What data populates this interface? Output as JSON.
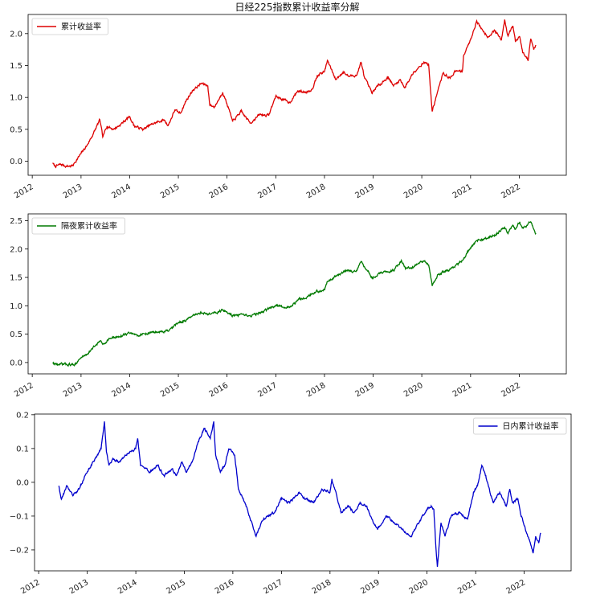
{
  "chart_data": [
    {
      "type": "line",
      "title": "日经225指数累计收益率分解",
      "legend_position": "top-left",
      "series": [
        {
          "name": "累计收益率",
          "color": "#dd0000"
        }
      ],
      "xlim": [
        "2011-12-01",
        "2022-12-20"
      ],
      "ylim": [
        -0.22,
        2.3
      ],
      "x_ticks": [
        "2012",
        "2013",
        "2014",
        "2015",
        "2016",
        "2017",
        "2018",
        "2019",
        "2020",
        "2021",
        "2022"
      ],
      "y_ticks": [
        "0.0",
        "0.5",
        "1.0",
        "1.5",
        "2.0"
      ],
      "y_tick_values": [
        0,
        0.5,
        1.0,
        1.5,
        2.0
      ],
      "points": [
        [
          "2012-06-01",
          -0.03
        ],
        [
          "2012-06-20",
          -0.08
        ],
        [
          "2012-08-01",
          -0.05
        ],
        [
          "2012-09-15",
          -0.08
        ],
        [
          "2012-11-01",
          -0.07
        ],
        [
          "2012-11-15",
          -0.02
        ],
        [
          "2013-01-01",
          0.12
        ],
        [
          "2013-02-15",
          0.25
        ],
        [
          "2013-04-01",
          0.42
        ],
        [
          "2013-05-22",
          0.65
        ],
        [
          "2013-06-13",
          0.38
        ],
        [
          "2013-07-15",
          0.55
        ],
        [
          "2013-09-01",
          0.5
        ],
        [
          "2013-10-15",
          0.56
        ],
        [
          "2013-12-31",
          0.7
        ],
        [
          "2014-02-05",
          0.55
        ],
        [
          "2014-04-15",
          0.5
        ],
        [
          "2014-06-15",
          0.58
        ],
        [
          "2014-09-15",
          0.65
        ],
        [
          "2014-10-17",
          0.56
        ],
        [
          "2014-12-05",
          0.8
        ],
        [
          "2015-01-15",
          0.75
        ],
        [
          "2015-03-01",
          0.95
        ],
        [
          "2015-04-22",
          1.12
        ],
        [
          "2015-06-24",
          1.22
        ],
        [
          "2015-08-10",
          1.18
        ],
        [
          "2015-08-25",
          0.88
        ],
        [
          "2015-09-29",
          0.85
        ],
        [
          "2015-11-30",
          1.08
        ],
        [
          "2016-01-15",
          0.82
        ],
        [
          "2016-02-12",
          0.62
        ],
        [
          "2016-04-15",
          0.78
        ],
        [
          "2016-06-24",
          0.6
        ],
        [
          "2016-09-01",
          0.73
        ],
        [
          "2016-11-09",
          0.72
        ],
        [
          "2016-12-31",
          1.02
        ],
        [
          "2017-04-15",
          0.92
        ],
        [
          "2017-06-15",
          1.1
        ],
        [
          "2017-08-15",
          1.08
        ],
        [
          "2017-10-01",
          1.13
        ],
        [
          "2017-11-08",
          1.35
        ],
        [
          "2017-12-31",
          1.4
        ],
        [
          "2018-01-23",
          1.58
        ],
        [
          "2018-03-26",
          1.28
        ],
        [
          "2018-05-21",
          1.4
        ],
        [
          "2018-07-01",
          1.33
        ],
        [
          "2018-09-01",
          1.35
        ],
        [
          "2018-10-02",
          1.55
        ],
        [
          "2018-10-30",
          1.3
        ],
        [
          "2018-12-25",
          1.06
        ],
        [
          "2019-01-20",
          1.15
        ],
        [
          "2019-04-25",
          1.32
        ],
        [
          "2019-06-03",
          1.18
        ],
        [
          "2019-07-25",
          1.28
        ],
        [
          "2019-08-26",
          1.15
        ],
        [
          "2019-11-01",
          1.4
        ],
        [
          "2019-12-31",
          1.52
        ],
        [
          "2020-01-20",
          1.55
        ],
        [
          "2020-02-21",
          1.52
        ],
        [
          "2020-03-19",
          0.78
        ],
        [
          "2020-04-30",
          1.1
        ],
        [
          "2020-06-09",
          1.38
        ],
        [
          "2020-08-01",
          1.3
        ],
        [
          "2020-09-01",
          1.4
        ],
        [
          "2020-11-01",
          1.42
        ],
        [
          "2020-11-09",
          1.65
        ],
        [
          "2020-12-31",
          1.9
        ],
        [
          "2021-02-16",
          2.2
        ],
        [
          "2021-03-15",
          2.1
        ],
        [
          "2021-05-13",
          1.95
        ],
        [
          "2021-07-01",
          2.05
        ],
        [
          "2021-08-20",
          1.9
        ],
        [
          "2021-09-14",
          2.22
        ],
        [
          "2021-10-06",
          1.98
        ],
        [
          "2021-11-15",
          2.12
        ],
        [
          "2021-12-03",
          1.88
        ],
        [
          "2022-01-05",
          1.95
        ],
        [
          "2022-01-27",
          1.7
        ],
        [
          "2022-02-24",
          1.62
        ],
        [
          "2022-03-09",
          1.58
        ],
        [
          "2022-03-28",
          1.92
        ],
        [
          "2022-04-20",
          1.75
        ],
        [
          "2022-05-06",
          1.82
        ]
      ]
    },
    {
      "type": "line",
      "title": "",
      "legend_position": "top-left",
      "series": [
        {
          "name": "隔夜累计收益率",
          "color": "#007a00"
        }
      ],
      "xlim": [
        "2011-12-01",
        "2022-12-20"
      ],
      "ylim": [
        -0.2,
        2.62
      ],
      "x_ticks": [
        "2012",
        "2013",
        "2014",
        "2015",
        "2016",
        "2017",
        "2018",
        "2019",
        "2020",
        "2021",
        "2022"
      ],
      "y_ticks": [
        "0.0",
        "0.5",
        "1.0",
        "1.5",
        "2.0",
        "2.5"
      ],
      "y_tick_values": [
        0,
        0.5,
        1.0,
        1.5,
        2.0,
        2.5
      ],
      "points": [
        [
          "2012-06-01",
          -0.01
        ],
        [
          "2012-07-15",
          -0.04
        ],
        [
          "2012-09-15",
          -0.03
        ],
        [
          "2012-11-01",
          -0.04
        ],
        [
          "2012-11-15",
          -0.03
        ],
        [
          "2013-01-01",
          0.08
        ],
        [
          "2013-03-01",
          0.18
        ],
        [
          "2013-05-22",
          0.38
        ],
        [
          "2013-06-13",
          0.32
        ],
        [
          "2013-08-01",
          0.42
        ],
        [
          "2013-10-01",
          0.45
        ],
        [
          "2013-12-31",
          0.52
        ],
        [
          "2014-03-01",
          0.48
        ],
        [
          "2014-06-15",
          0.53
        ],
        [
          "2014-10-17",
          0.55
        ],
        [
          "2014-12-31",
          0.7
        ],
        [
          "2015-03-01",
          0.75
        ],
        [
          "2015-06-15",
          0.88
        ],
        [
          "2015-08-25",
          0.85
        ],
        [
          "2015-12-01",
          0.92
        ],
        [
          "2016-02-12",
          0.83
        ],
        [
          "2016-06-24",
          0.82
        ],
        [
          "2016-09-01",
          0.87
        ],
        [
          "2016-12-31",
          1.0
        ],
        [
          "2017-04-15",
          0.97
        ],
        [
          "2017-06-30",
          1.12
        ],
        [
          "2017-09-01",
          1.17
        ],
        [
          "2017-10-30",
          1.25
        ],
        [
          "2017-12-31",
          1.28
        ],
        [
          "2018-01-23",
          1.43
        ],
        [
          "2018-03-26",
          1.52
        ],
        [
          "2018-06-01",
          1.6
        ],
        [
          "2018-09-01",
          1.62
        ],
        [
          "2018-10-02",
          1.78
        ],
        [
          "2018-12-25",
          1.5
        ],
        [
          "2019-03-01",
          1.58
        ],
        [
          "2019-06-03",
          1.62
        ],
        [
          "2019-08-01",
          1.8
        ],
        [
          "2019-09-01",
          1.65
        ],
        [
          "2019-11-01",
          1.68
        ],
        [
          "2019-12-31",
          1.78
        ],
        [
          "2020-02-01",
          1.76
        ],
        [
          "2020-02-21",
          1.72
        ],
        [
          "2020-03-19",
          1.35
        ],
        [
          "2020-05-01",
          1.55
        ],
        [
          "2020-07-01",
          1.62
        ],
        [
          "2020-09-01",
          1.68
        ],
        [
          "2020-11-09",
          1.82
        ],
        [
          "2020-12-31",
          2.02
        ],
        [
          "2021-02-16",
          2.15
        ],
        [
          "2021-05-13",
          2.2
        ],
        [
          "2021-07-01",
          2.25
        ],
        [
          "2021-09-14",
          2.38
        ],
        [
          "2021-10-06",
          2.28
        ],
        [
          "2021-11-15",
          2.42
        ],
        [
          "2021-12-03",
          2.35
        ],
        [
          "2022-01-05",
          2.48
        ],
        [
          "2022-01-27",
          2.38
        ],
        [
          "2022-02-24",
          2.4
        ],
        [
          "2022-03-09",
          2.45
        ],
        [
          "2022-03-28",
          2.48
        ],
        [
          "2022-04-20",
          2.35
        ],
        [
          "2022-05-06",
          2.28
        ]
      ]
    },
    {
      "type": "line",
      "title": "",
      "legend_position": "top-right",
      "series": [
        {
          "name": "日内累计收益率",
          "color": "#0000cc"
        }
      ],
      "xlim": [
        "2011-12-01",
        "2022-12-20"
      ],
      "ylim": [
        -0.262,
        0.202
      ],
      "x_ticks": [
        "2012",
        "2013",
        "2014",
        "2015",
        "2016",
        "2017",
        "2018",
        "2019",
        "2020",
        "2021",
        "2022"
      ],
      "y_ticks": [
        "0.2",
        "0.1",
        "0.0",
        "−0.1",
        "−0.2"
      ],
      "y_tick_values": [
        0.2,
        0.1,
        0,
        -0.1,
        -0.2
      ],
      "points": [
        [
          "2012-06-01",
          -0.01
        ],
        [
          "2012-06-20",
          -0.05
        ],
        [
          "2012-08-01",
          -0.01
        ],
        [
          "2012-09-15",
          -0.04
        ],
        [
          "2012-11-01",
          -0.02
        ],
        [
          "2012-12-15",
          0.02
        ],
        [
          "2013-01-15",
          0.04
        ],
        [
          "2013-03-01",
          0.07
        ],
        [
          "2013-04-15",
          0.1
        ],
        [
          "2013-05-10",
          0.18
        ],
        [
          "2013-05-25",
          0.09
        ],
        [
          "2013-06-13",
          0.05
        ],
        [
          "2013-07-15",
          0.07
        ],
        [
          "2013-09-01",
          0.06
        ],
        [
          "2013-10-15",
          0.08
        ],
        [
          "2013-12-31",
          0.1
        ],
        [
          "2014-01-15",
          0.13
        ],
        [
          "2014-02-05",
          0.05
        ],
        [
          "2014-04-15",
          0.03
        ],
        [
          "2014-06-15",
          0.05
        ],
        [
          "2014-08-01",
          0.02
        ],
        [
          "2014-10-01",
          0.04
        ],
        [
          "2014-11-01",
          0.02
        ],
        [
          "2014-12-15",
          0.06
        ],
        [
          "2015-01-15",
          0.03
        ],
        [
          "2015-03-01",
          0.06
        ],
        [
          "2015-04-15",
          0.12
        ],
        [
          "2015-06-01",
          0.16
        ],
        [
          "2015-07-15",
          0.13
        ],
        [
          "2015-08-10",
          0.18
        ],
        [
          "2015-08-25",
          0.08
        ],
        [
          "2015-09-29",
          0.03
        ],
        [
          "2015-11-01",
          0.05
        ],
        [
          "2015-12-01",
          0.1
        ],
        [
          "2016-01-15",
          0.08
        ],
        [
          "2016-02-12",
          -0.02
        ],
        [
          "2016-04-01",
          -0.06
        ],
        [
          "2016-06-24",
          -0.16
        ],
        [
          "2016-08-01",
          -0.12
        ],
        [
          "2016-09-15",
          -0.1
        ],
        [
          "2016-11-09",
          -0.09
        ],
        [
          "2016-12-31",
          -0.05
        ],
        [
          "2017-03-01",
          -0.06
        ],
        [
          "2017-05-15",
          -0.03
        ],
        [
          "2017-07-01",
          -0.05
        ],
        [
          "2017-09-01",
          -0.06
        ],
        [
          "2017-11-01",
          -0.02
        ],
        [
          "2017-12-31",
          -0.03
        ],
        [
          "2018-01-15",
          0.01
        ],
        [
          "2018-03-26",
          -0.09
        ],
        [
          "2018-05-21",
          -0.07
        ],
        [
          "2018-07-01",
          -0.09
        ],
        [
          "2018-08-15",
          -0.06
        ],
        [
          "2018-10-02",
          -0.07
        ],
        [
          "2018-11-01",
          -0.1
        ],
        [
          "2018-12-25",
          -0.14
        ],
        [
          "2019-03-01",
          -0.1
        ],
        [
          "2019-05-01",
          -0.12
        ],
        [
          "2019-07-01",
          -0.14
        ],
        [
          "2019-09-01",
          -0.16
        ],
        [
          "2019-11-01",
          -0.12
        ],
        [
          "2019-12-31",
          -0.08
        ],
        [
          "2020-02-01",
          -0.07
        ],
        [
          "2020-02-21",
          -0.08
        ],
        [
          "2020-03-09",
          -0.2
        ],
        [
          "2020-03-19",
          -0.25
        ],
        [
          "2020-04-15",
          -0.12
        ],
        [
          "2020-05-15",
          -0.16
        ],
        [
          "2020-07-01",
          -0.1
        ],
        [
          "2020-09-01",
          -0.09
        ],
        [
          "2020-11-01",
          -0.11
        ],
        [
          "2020-12-15",
          -0.03
        ],
        [
          "2021-01-15",
          -0.01
        ],
        [
          "2021-02-16",
          0.05
        ],
        [
          "2021-03-15",
          0.02
        ],
        [
          "2021-05-13",
          -0.06
        ],
        [
          "2021-07-01",
          -0.03
        ],
        [
          "2021-08-20",
          -0.07
        ],
        [
          "2021-09-14",
          -0.02
        ],
        [
          "2021-10-06",
          -0.06
        ],
        [
          "2021-11-15",
          -0.05
        ],
        [
          "2021-12-03",
          -0.09
        ],
        [
          "2022-01-05",
          -0.13
        ],
        [
          "2022-01-27",
          -0.16
        ],
        [
          "2022-02-24",
          -0.19
        ],
        [
          "2022-03-09",
          -0.21
        ],
        [
          "2022-03-28",
          -0.16
        ],
        [
          "2022-04-20",
          -0.18
        ],
        [
          "2022-05-06",
          -0.15
        ]
      ]
    }
  ]
}
